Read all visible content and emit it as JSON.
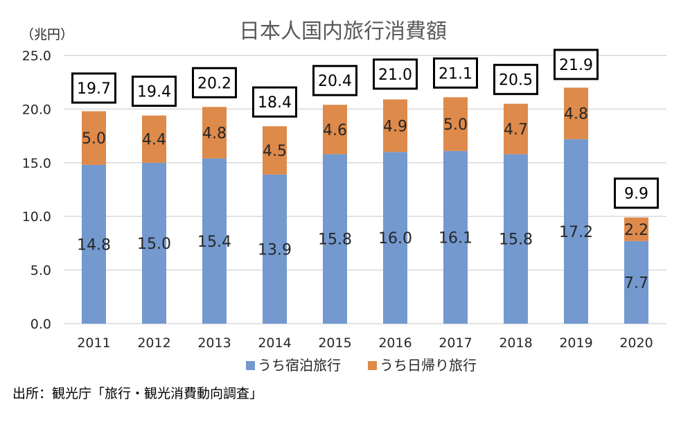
{
  "chart_data": {
    "type": "bar",
    "stacked": true,
    "title": "日本人国内旅行消費額",
    "unit_label": "（兆円）",
    "categories": [
      "2011",
      "2012",
      "2013",
      "2014",
      "2015",
      "2016",
      "2017",
      "2018",
      "2019",
      "2020"
    ],
    "series": [
      {
        "name": "うち宿泊旅行",
        "color": "#7399cf",
        "values": [
          14.8,
          15.0,
          15.4,
          13.9,
          15.8,
          16.0,
          16.1,
          15.8,
          17.2,
          7.7
        ]
      },
      {
        "name": "うち日帰り旅行",
        "color": "#de8a4b",
        "values": [
          5.0,
          4.4,
          4.8,
          4.5,
          4.6,
          4.9,
          5.0,
          4.7,
          4.8,
          2.2
        ]
      }
    ],
    "totals": [
      19.7,
      19.4,
      20.2,
      18.4,
      20.4,
      21.0,
      21.1,
      20.5,
      21.9,
      9.9
    ],
    "y_ticks": [
      "0.0",
      "5.0",
      "10.0",
      "15.0",
      "20.0",
      "25.0"
    ],
    "ylim": [
      0,
      25
    ],
    "grid": true,
    "legend_position": "bottom"
  },
  "source": "出所：観光庁「旅行・観光消費動向調査」"
}
